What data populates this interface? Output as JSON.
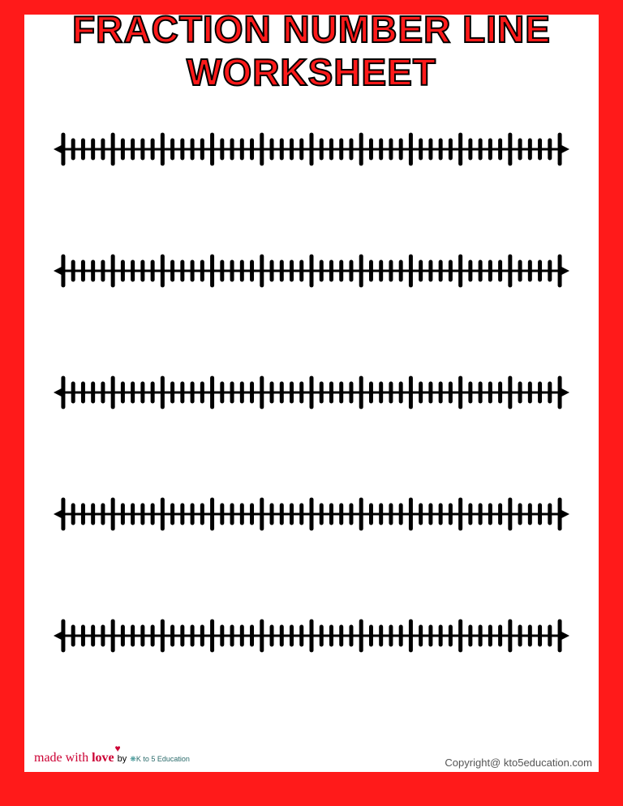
{
  "title_line1": "FRACTION NUMBER LINE",
  "title_line2": "WORKSHEET",
  "border_color": "#ff1a1a",
  "page_bg": "#ffffff",
  "title_fill": "#ff1a1a",
  "title_stroke": "#000000",
  "title_fontsize": 46,
  "number_lines": {
    "count": 5,
    "major_segments": 10,
    "minor_per_major": 5,
    "line_color": "#000000",
    "line_width": 3,
    "major_tick_height": 36,
    "minor_tick_height": 22,
    "tick_width": 5,
    "arrow_size": 12
  },
  "credit": {
    "made_with": "made with",
    "love": "love",
    "by": "by",
    "brand": "K to 5 Education"
  },
  "copyright_text": "Copyright@ kto5education.com"
}
